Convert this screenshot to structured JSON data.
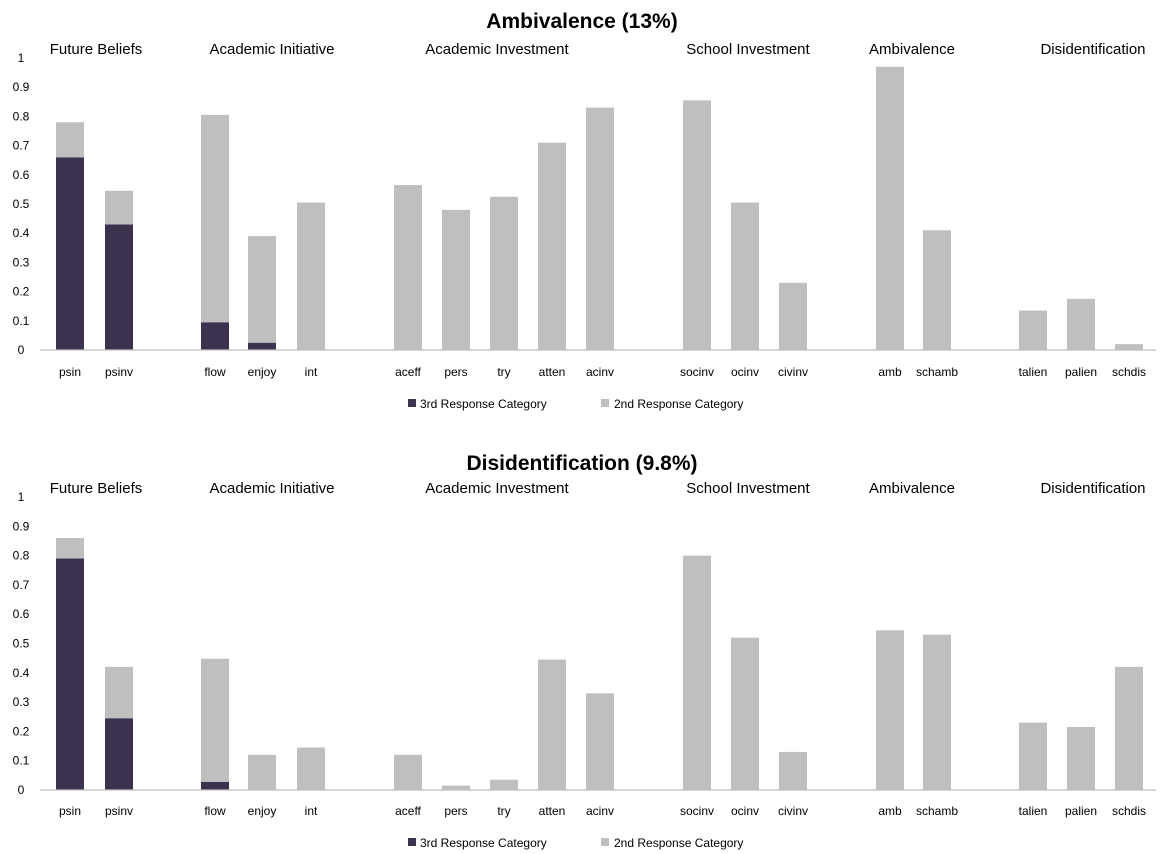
{
  "chart_data": [
    {
      "type": "bar",
      "stacked": true,
      "title": "Ambivalence (13%)",
      "groups": [
        "Future Beliefs",
        "Academic Initiative",
        "Academic Investment",
        "School Investment",
        "Ambivalence",
        "Disidentification"
      ],
      "group_sizes": [
        2,
        3,
        5,
        3,
        2,
        3
      ],
      "categories": [
        "psin",
        "psinv",
        "flow",
        "enjoy",
        "int",
        "aceff",
        "pers",
        "try",
        "atten",
        "acinv",
        "socinv",
        "ocinv",
        "civinv",
        "amb",
        "schamb",
        "talien",
        "palien",
        "schdis"
      ],
      "ylim": [
        0,
        1
      ],
      "yticks": [
        "0",
        "0.1",
        "0.2",
        "0.3",
        "0.4",
        "0.5",
        "0.6",
        "0.7",
        "0.8",
        "0.9",
        "1"
      ],
      "series": [
        {
          "name": "3rd Response Category",
          "color": "#3d3150",
          "values": [
            0.66,
            0.43,
            0.095,
            0.025,
            0,
            0,
            0,
            0,
            0,
            0,
            0,
            0,
            0,
            0,
            0,
            0,
            0,
            0
          ]
        },
        {
          "name": "2nd Response Category",
          "color": "#bfbfbf",
          "values": [
            0.12,
            0.115,
            0.71,
            0.365,
            0.505,
            0.565,
            0.48,
            0.525,
            0.71,
            0.83,
            0.855,
            0.505,
            0.23,
            0.97,
            0.41,
            0.135,
            0.175,
            0.02
          ]
        }
      ],
      "legend": "bottom"
    },
    {
      "type": "bar",
      "stacked": true,
      "title": "Disidentification (9.8%)",
      "groups": [
        "Future Beliefs",
        "Academic Initiative",
        "Academic Investment",
        "School Investment",
        "Ambivalence",
        "Disidentification"
      ],
      "group_sizes": [
        2,
        3,
        5,
        3,
        2,
        3
      ],
      "categories": [
        "psin",
        "psinv",
        "flow",
        "enjoy",
        "int",
        "aceff",
        "pers",
        "try",
        "atten",
        "acinv",
        "socinv",
        "ocinv",
        "civinv",
        "amb",
        "schamb",
        "talien",
        "palien",
        "schdis"
      ],
      "ylim": [
        0,
        1
      ],
      "yticks": [
        "0",
        "0.1",
        "0.2",
        "0.3",
        "0.4",
        "0.5",
        "0.6",
        "0.7",
        "0.8",
        "0.9",
        "1"
      ],
      "series": [
        {
          "name": "3rd Response Category",
          "color": "#3d3150",
          "values": [
            0.79,
            0.245,
            0.028,
            0,
            0,
            0,
            0,
            0,
            0,
            0,
            0,
            0,
            0,
            0,
            0,
            0,
            0,
            0
          ]
        },
        {
          "name": "2nd Response Category",
          "color": "#bfbfbf",
          "values": [
            0.07,
            0.175,
            0.42,
            0.12,
            0.145,
            0.12,
            0.015,
            0.035,
            0.445,
            0.33,
            0.8,
            0.52,
            0.13,
            0.545,
            0.53,
            0.23,
            0.215,
            0.42
          ]
        }
      ],
      "legend": "bottom"
    }
  ]
}
